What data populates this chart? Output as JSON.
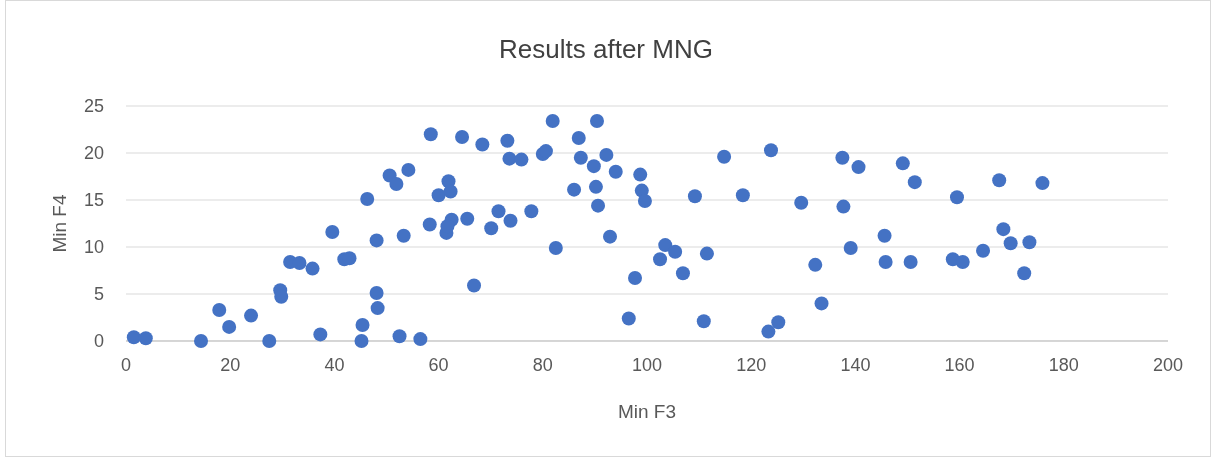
{
  "chart_data": {
    "type": "scatter",
    "title": "Results after MNG",
    "xlabel": "Min F3",
    "ylabel": "Min F4",
    "xlim": [
      0,
      200
    ],
    "xticks": [
      0,
      20,
      40,
      60,
      80,
      100,
      120,
      140,
      160,
      180,
      200
    ],
    "ylim": [
      0,
      25
    ],
    "yticks": [
      0,
      5,
      10,
      15,
      20,
      25
    ],
    "grid": "y",
    "marker": "circle",
    "series": [
      {
        "color": "#4472c4",
        "x": [
          1.5,
          3.8,
          14.4,
          17.9,
          19.8,
          24,
          27.5,
          29.6,
          29.8,
          31.5,
          33.3,
          35.8,
          37.3,
          39.6,
          41.9,
          42.9,
          45.4,
          45.2,
          46.3,
          48.1,
          48.3,
          48.1,
          50.6,
          51.9,
          52.5,
          53.3,
          54.2,
          56.5,
          58.3,
          58.5,
          60.0,
          61.5,
          61.9,
          62.3,
          62.5,
          61.7,
          64.5,
          65.5,
          66.8,
          68.4,
          70.1,
          71.5,
          73.2,
          73.6,
          73.8,
          75.9,
          77.8,
          80.0,
          80.6,
          81.9,
          82.5,
          86.0,
          86.9,
          87.3,
          89.8,
          90.4,
          90.2,
          90.6,
          92.2,
          92.9,
          94.0,
          96.5,
          97.7,
          98.7,
          99.0,
          99.6,
          103.5,
          102.5,
          105.4,
          106.9,
          109.2,
          110.9,
          111.5,
          114.8,
          118.4,
          123.3,
          123.8,
          125.2,
          129.6,
          132.3,
          133.5,
          137.5,
          137.7,
          139.1,
          140.6,
          145.6,
          145.8,
          149.1,
          150.6,
          151.4,
          158.7,
          159.5,
          160.6,
          164.5,
          167.6,
          168.4,
          169.8,
          172.4,
          173.4,
          175.9
        ],
        "values": [
          0.4,
          0.3,
          0,
          3.3,
          1.5,
          2.7,
          0,
          5.4,
          4.7,
          8.4,
          8.3,
          7.7,
          0.7,
          11.6,
          8.7,
          8.8,
          1.7,
          0,
          15.1,
          5.1,
          3.5,
          10.7,
          17.6,
          16.7,
          0.5,
          11.2,
          18.2,
          0.2,
          12.4,
          22.0,
          15.5,
          11.5,
          17.0,
          15.9,
          12.9,
          12.2,
          21.7,
          13.0,
          5.9,
          20.9,
          12.0,
          13.8,
          21.3,
          19.4,
          12.8,
          19.3,
          13.8,
          19.9,
          20.2,
          23.4,
          9.9,
          16.1,
          21.6,
          19.5,
          18.6,
          23.4,
          16.4,
          14.4,
          19.8,
          11.1,
          18.0,
          2.4,
          6.7,
          17.7,
          16.0,
          14.9,
          10.2,
          8.7,
          9.5,
          7.2,
          15.4,
          2.1,
          9.3,
          19.6,
          15.5,
          1.0,
          20.3,
          2.0,
          14.7,
          8.1,
          4.0,
          19.5,
          14.3,
          9.9,
          18.5,
          11.2,
          8.4,
          18.9,
          8.4,
          16.9,
          8.7,
          15.3,
          8.4,
          9.6,
          17.1,
          11.9,
          10.4,
          7.2,
          10.5,
          16.8
        ]
      }
    ]
  }
}
